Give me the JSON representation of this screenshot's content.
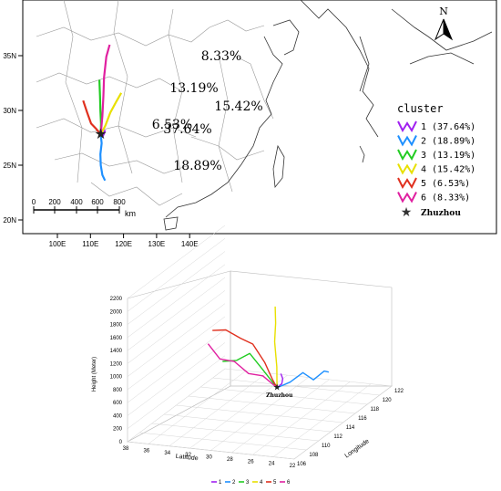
{
  "chart_data": [
    {
      "type": "map-trajectory",
      "axes": {
        "x_ticks": [
          "100E",
          "110E",
          "120E",
          "130E",
          "140E"
        ],
        "y_ticks": [
          "35N",
          "30N",
          "25N",
          "20N"
        ]
      },
      "north_label": "N",
      "scale_bar": {
        "ticks": [
          "0",
          "200",
          "400",
          "600",
          "800"
        ],
        "unit": "km"
      },
      "legend": {
        "title": "cluster",
        "entries": [
          {
            "label": "1 (37.64%)",
            "color": "#a020f0"
          },
          {
            "label": "2 (18.89%)",
            "color": "#1e90ff"
          },
          {
            "label": "3 (13.19%)",
            "color": "#22cc22"
          },
          {
            "label": "4 (15.42%)",
            "color": "#e8e000"
          },
          {
            "label": "5 (6.53%)",
            "color": "#e0301e"
          },
          {
            "label": "6 (8.33%)",
            "color": "#e020a0"
          }
        ],
        "site_label": "Zhuzhou"
      },
      "site": {
        "lon": 113.1,
        "lat": 27.8
      },
      "series": [
        {
          "cluster": 1,
          "color": "#a020f0",
          "percent_label": "37.64%",
          "points": [
            [
              113.1,
              27.8
            ],
            [
              113.6,
              27.6
            ],
            [
              114.1,
              27.9
            ],
            [
              114.4,
              28.2
            ]
          ]
        },
        {
          "cluster": 2,
          "color": "#1e90ff",
          "percent_label": "18.89%",
          "points": [
            [
              113.1,
              27.8
            ],
            [
              113.4,
              27.0
            ],
            [
              113.0,
              26.0
            ],
            [
              113.1,
              25.0
            ],
            [
              113.6,
              24.1
            ],
            [
              114.4,
              23.6
            ]
          ]
        },
        {
          "cluster": 3,
          "color": "#22cc22",
          "percent_label": "13.19%",
          "points": [
            [
              113.1,
              27.8
            ],
            [
              113.2,
              28.8
            ],
            [
              113.0,
              30.0
            ],
            [
              112.9,
              31.3
            ],
            [
              112.7,
              32.8
            ]
          ]
        },
        {
          "cluster": 4,
          "color": "#e8e000",
          "percent_label": "15.42%",
          "points": [
            [
              113.1,
              27.8
            ],
            [
              114.5,
              28.6
            ],
            [
              116.0,
              29.8
            ],
            [
              117.8,
              30.8
            ],
            [
              119.3,
              31.6
            ]
          ]
        },
        {
          "cluster": 5,
          "color": "#e0301e",
          "percent_label": "6.53%",
          "points": [
            [
              113.1,
              27.8
            ],
            [
              111.8,
              28.3
            ],
            [
              110.2,
              28.8
            ],
            [
              109.0,
              29.8
            ],
            [
              107.8,
              30.9
            ]
          ]
        },
        {
          "cluster": 6,
          "color": "#e020a0",
          "percent_label": "8.33%",
          "points": [
            [
              113.1,
              27.8
            ],
            [
              113.6,
              29.5
            ],
            [
              113.9,
              31.3
            ],
            [
              114.1,
              33.0
            ],
            [
              114.8,
              34.9
            ],
            [
              115.8,
              36.0
            ]
          ]
        }
      ]
    },
    {
      "type": "line-3d",
      "z_ticks": [
        "0",
        "200",
        "400",
        "600",
        "800",
        "1000",
        "1200",
        "1400",
        "1600",
        "1800",
        "2000",
        "2200"
      ],
      "ylabel_3d": "Height (Meter)",
      "lat_ticks": [
        "38",
        "36",
        "34",
        "32",
        "30",
        "28",
        "26",
        "24",
        "22"
      ],
      "lat_label": "Latitude",
      "lon_ticks": [
        "106",
        "108",
        "110",
        "112",
        "114",
        "116",
        "118",
        "120",
        "122"
      ],
      "lon_label": "Longitude",
      "site_label": "Zhuzhou",
      "legend": [
        {
          "label": "1",
          "color": "#a020f0"
        },
        {
          "label": "2",
          "color": "#1e90ff"
        },
        {
          "label": "3",
          "color": "#22cc22"
        },
        {
          "label": "4",
          "color": "#e8e000"
        },
        {
          "label": "5",
          "color": "#e0301e"
        },
        {
          "label": "6",
          "color": "#e020a0"
        }
      ],
      "series": [
        {
          "name": "1",
          "color": "#a020f0",
          "points": [
            [
              114.4,
              28.2,
              620
            ],
            [
              114.2,
              27.9,
              560
            ],
            [
              113.7,
              27.7,
              520
            ],
            [
              113.1,
              27.8,
              500
            ]
          ]
        },
        {
          "name": "2",
          "color": "#1e90ff",
          "points": [
            [
              114.4,
              23.6,
              720
            ],
            [
              114.0,
              23.8,
              760
            ],
            [
              113.6,
              24.6,
              640
            ],
            [
              113.4,
              25.5,
              750
            ],
            [
              113.2,
              26.6,
              600
            ],
            [
              113.1,
              27.8,
              500
            ]
          ]
        },
        {
          "name": "3",
          "color": "#22cc22",
          "points": [
            [
              112.7,
              32.8,
              850
            ],
            [
              112.8,
              31.5,
              880
            ],
            [
              112.9,
              30.3,
              1000
            ],
            [
              113.0,
              29.2,
              780
            ],
            [
              113.1,
              27.8,
              500
            ]
          ]
        },
        {
          "name": "4",
          "color": "#e8e000",
          "points": [
            [
              119.3,
              31.6,
              1250
            ],
            [
              118.0,
              30.8,
              1100
            ],
            [
              116.3,
              29.9,
              950
            ],
            [
              114.6,
              28.7,
              700
            ],
            [
              113.1,
              27.8,
              500
            ]
          ]
        },
        {
          "name": "5",
          "color": "#e0301e",
          "points": [
            [
              107.8,
              30.9,
              1700
            ],
            [
              108.8,
              30.2,
              1650
            ],
            [
              110.0,
              29.5,
              1450
            ],
            [
              111.0,
              28.9,
              1300
            ],
            [
              112.1,
              28.4,
              950
            ],
            [
              112.7,
              28.0,
              650
            ],
            [
              113.1,
              27.8,
              500
            ]
          ]
        },
        {
          "name": "6",
          "color": "#e020a0",
          "points": [
            [
              115.8,
              36.0,
              850
            ],
            [
              115.0,
              34.4,
              700
            ],
            [
              114.3,
              32.6,
              740
            ],
            [
              113.9,
              31.0,
              610
            ],
            [
              113.5,
              29.4,
              630
            ],
            [
              113.1,
              27.8,
              500
            ]
          ]
        }
      ]
    }
  ]
}
